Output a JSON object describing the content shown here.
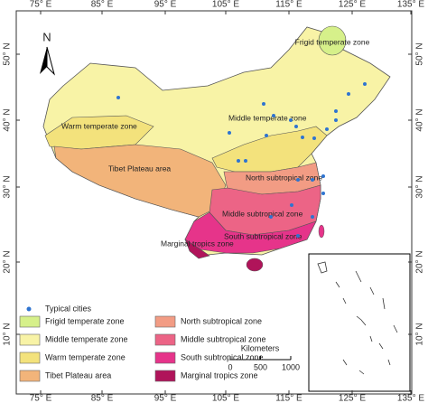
{
  "map": {
    "top_ticks": [
      "75° E",
      "85° E",
      "95° E",
      "105° E",
      "115° E",
      "125° E",
      "135° E"
    ],
    "bottom_ticks": [
      "75° E",
      "85° E",
      "95° E",
      "105° E",
      "115° E",
      "125° E",
      "135° E"
    ],
    "left_ticks": [
      "50° N",
      "40° N",
      "30° N",
      "20° N",
      "10° N"
    ],
    "right_ticks": [
      "50° N",
      "40° N",
      "30° N",
      "20° N",
      "10° N"
    ],
    "north": "N",
    "zone_labels": [
      "Frigid temperate zone",
      "Middle temperate zone",
      "Warm temperate zone",
      "Tibet Plateau area",
      "North subtropical zone",
      "Middle subtropical zone",
      "South subtropical zone",
      "Marginal tropics zone"
    ],
    "scale": {
      "title": "Kilometers",
      "ticks": [
        0,
        500,
        1000
      ]
    }
  },
  "legend": [
    {
      "label": "Typical cities",
      "color": "#2f74d0"
    },
    {
      "label": "Frigid temperate zone",
      "color": "#d6f08a"
    },
    {
      "label": "Middle temperate zone",
      "color": "#f8f3a6"
    },
    {
      "label": "Warm temperate zone",
      "color": "#f3e27c"
    },
    {
      "label": "Tibet Plateau area",
      "color": "#f2b47a"
    },
    {
      "label": "North subtropical zone",
      "color": "#f29c84"
    },
    {
      "label": "Middle subtropical zone",
      "color": "#ec6486"
    },
    {
      "label": "South subtropical zone",
      "color": "#e6348a"
    },
    {
      "label": "Marginal tropics zone",
      "color": "#b0145a"
    }
  ]
}
